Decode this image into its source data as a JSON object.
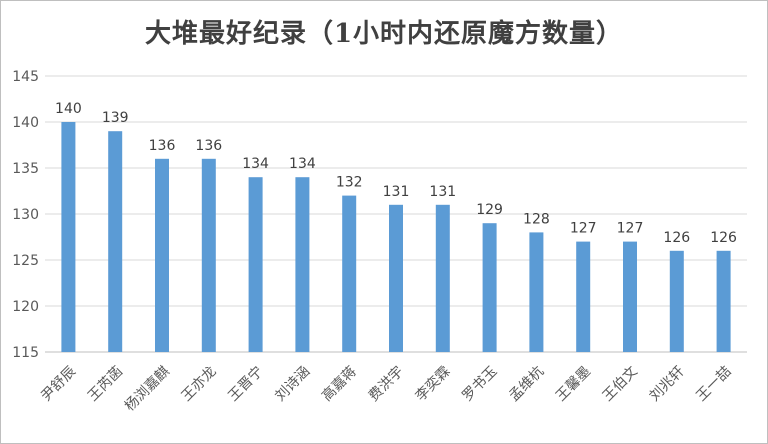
{
  "chart_data": {
    "type": "bar",
    "title": "大堆最好纪录（1小时内还原魔方数量）",
    "xlabel": "",
    "ylabel": "",
    "categories": [
      "尹舒辰",
      "王芮菡",
      "杨浏嘉麒",
      "王亦龙",
      "王晋宁",
      "刘诗涵",
      "高嘉蒋",
      "费洪宇",
      "李奕霖",
      "罗书玉",
      "孟维杭",
      "王馨墨",
      "王伯文",
      "刘兆轩",
      "王一喆"
    ],
    "values": [
      140,
      139,
      136,
      136,
      134,
      134,
      132,
      131,
      131,
      129,
      128,
      127,
      127,
      126,
      126
    ],
    "ylim": [
      115,
      145
    ],
    "yticks": [
      115,
      120,
      125,
      130,
      135,
      140,
      145
    ],
    "grid": true,
    "legend": "none",
    "bar_color": "#5b9bd5"
  }
}
